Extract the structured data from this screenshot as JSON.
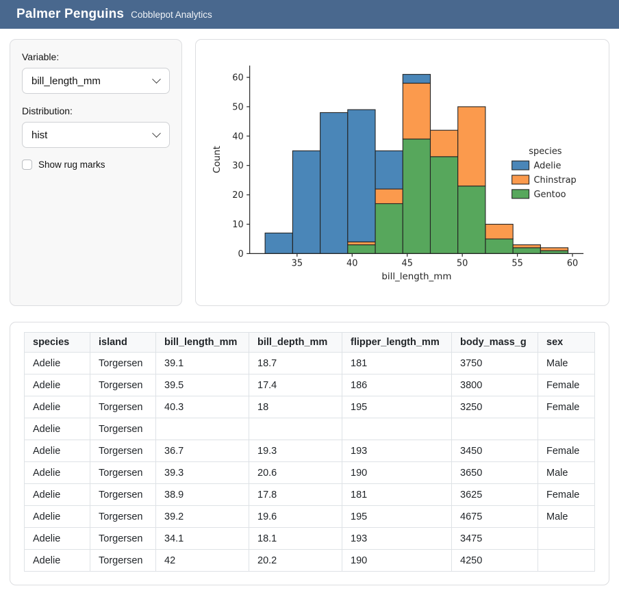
{
  "header": {
    "title": "Palmer Penguins",
    "subtitle": "Cobblepot Analytics",
    "bg_color": "#49688e"
  },
  "sidebar": {
    "variable_label": "Variable:",
    "variable_value": "bill_length_mm",
    "distribution_label": "Distribution:",
    "distribution_value": "hist",
    "rug_label": "Show rug marks",
    "rug_checked": false
  },
  "chart_data": {
    "type": "bar",
    "variant": "stacked-histogram",
    "title": "",
    "xlabel": "bill_length_mm",
    "ylabel": "Count",
    "legend_title": "species",
    "legend_position": "center right",
    "grid": false,
    "bin_edges": [
      32.1,
      34.6,
      37.1,
      39.6,
      42.1,
      44.6,
      47.1,
      49.6,
      52.1,
      54.6,
      57.1,
      59.6
    ],
    "series": [
      {
        "name": "Adelie",
        "color": "#4a86b8",
        "values": [
          7,
          35,
          48,
          45,
          13,
          3,
          0,
          0,
          0,
          0,
          0
        ]
      },
      {
        "name": "Chinstrap",
        "color": "#fb9a4d",
        "values": [
          0,
          0,
          0,
          1,
          5,
          19,
          9,
          27,
          5,
          1,
          1
        ]
      },
      {
        "name": "Gentoo",
        "color": "#57a75c",
        "values": [
          0,
          0,
          0,
          3,
          17,
          39,
          33,
          23,
          5,
          2,
          1
        ]
      }
    ],
    "stack_order_bottom_to_top": [
      "Gentoo",
      "Chinstrap",
      "Adelie"
    ],
    "edge_color": "#232323",
    "xticks": [
      35,
      40,
      45,
      50,
      55,
      60
    ],
    "yticks": [
      0,
      10,
      20,
      30,
      40,
      50,
      60
    ],
    "xlim": [
      30.7,
      61.0
    ],
    "ylim": [
      0,
      64
    ]
  },
  "table": {
    "columns": [
      "species",
      "island",
      "bill_length_mm",
      "bill_depth_mm",
      "flipper_length_mm",
      "body_mass_g",
      "sex"
    ],
    "rows": [
      [
        "Adelie",
        "Torgersen",
        "39.1",
        "18.7",
        "181",
        "3750",
        "Male"
      ],
      [
        "Adelie",
        "Torgersen",
        "39.5",
        "17.4",
        "186",
        "3800",
        "Female"
      ],
      [
        "Adelie",
        "Torgersen",
        "40.3",
        "18",
        "195",
        "3250",
        "Female"
      ],
      [
        "Adelie",
        "Torgersen",
        "",
        "",
        "",
        "",
        ""
      ],
      [
        "Adelie",
        "Torgersen",
        "36.7",
        "19.3",
        "193",
        "3450",
        "Female"
      ],
      [
        "Adelie",
        "Torgersen",
        "39.3",
        "20.6",
        "190",
        "3650",
        "Male"
      ],
      [
        "Adelie",
        "Torgersen",
        "38.9",
        "17.8",
        "181",
        "3625",
        "Female"
      ],
      [
        "Adelie",
        "Torgersen",
        "39.2",
        "19.6",
        "195",
        "4675",
        "Male"
      ],
      [
        "Adelie",
        "Torgersen",
        "34.1",
        "18.1",
        "193",
        "3475",
        ""
      ],
      [
        "Adelie",
        "Torgersen",
        "42",
        "20.2",
        "190",
        "4250",
        ""
      ]
    ]
  }
}
